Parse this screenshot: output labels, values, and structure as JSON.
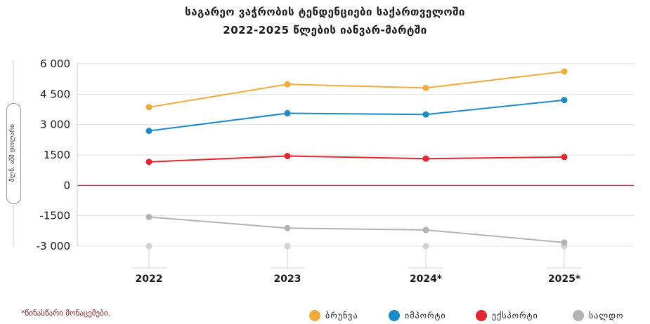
{
  "title_line1": "საგარეო ვაჭრობის ტენდენციები საქართველოში",
  "title_line2": "2022-2025 წლების იანვარ-მარტში",
  "ylabel": "მლნ. აშშ დოლარი",
  "footnote": "*წინასწარი მონაცემები.",
  "chart_data": {
    "type": "line",
    "title": "საგარეო ვაჭრობის ტენდენციები საქართველოში 2022-2025 წლების იანვარ-მარტში",
    "ylabel": "მლნ. აშშ დოლარი",
    "xlabel": "",
    "categories": [
      "2022",
      "2023",
      "2024*",
      "2025*"
    ],
    "ylim": [
      -3000,
      6000
    ],
    "yticks": [
      6000,
      4500,
      3000,
      1500,
      0,
      -1500,
      -3000
    ],
    "ytick_labels": [
      "6 000",
      "4 500",
      "3 000",
      "1500",
      "0",
      "-1500",
      "-3 000"
    ],
    "grid": true,
    "legend_position": "bottom-right",
    "series": [
      {
        "name": "ბრუნვა",
        "color": "#f0ac3c",
        "values": [
          3860,
          4990,
          4810,
          5620
        ]
      },
      {
        "name": "იმპორტი",
        "color": "#1b8ac8",
        "values": [
          2690,
          3560,
          3500,
          4210
        ]
      },
      {
        "name": "ექსპორტი",
        "color": "#e3262f",
        "values": [
          1160,
          1450,
          1320,
          1400
        ]
      },
      {
        "name": "სალდო",
        "color": "#b3b3b3",
        "values": [
          -1560,
          -2110,
          -2200,
          -2820
        ]
      }
    ]
  }
}
